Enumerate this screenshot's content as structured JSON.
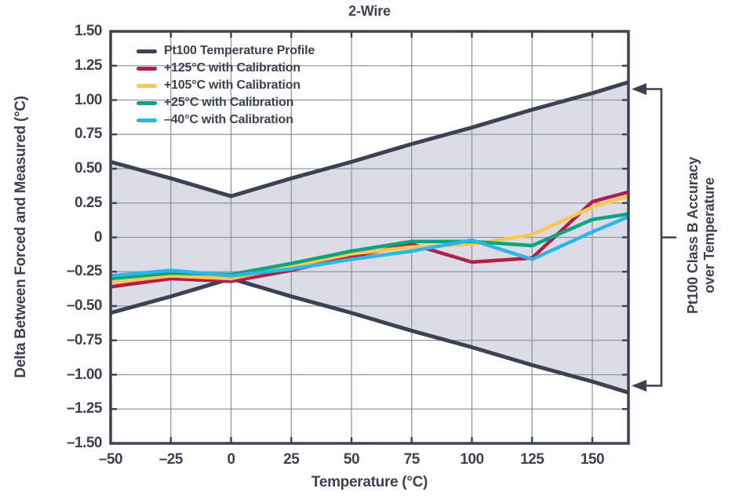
{
  "title": "2-Wire",
  "colors": {
    "ink": "#3a4253",
    "grid": "#9096a6",
    "band_fill": "#dbdce5",
    "background": "#ffffff",
    "profile": "#3a4253",
    "cal_125": "#b21e45",
    "cal_105": "#fdc74f",
    "cal_25": "#0ba57d",
    "cal_n40": "#2bb6e8"
  },
  "legend": {
    "items": [
      {
        "label": "Pt100 Temperature Profile",
        "color": "#3a4253"
      },
      {
        "label": "+125°C with Calibration",
        "color": "#b21e45"
      },
      {
        "label": "+105°C with Calibration",
        "color": "#fdc74f"
      },
      {
        "label": "+25°C with Calibration",
        "color": "#0ba57d"
      },
      {
        "label": "–40°C with Calibration",
        "color": "#2bb6e8"
      }
    ]
  },
  "annotation": {
    "line1": "Pt100 Class B Accuracy",
    "line2": "over Temperature"
  },
  "axes": {
    "x": {
      "label": "Temperature (°C)",
      "tick_labels": [
        "–50",
        "–25",
        "0",
        "25",
        "50",
        "75",
        "100",
        "125",
        "150"
      ],
      "tick_values": [
        -50,
        -25,
        0,
        25,
        50,
        75,
        100,
        125,
        150
      ]
    },
    "y": {
      "label": "Delta Between Forced and Measured (°C)",
      "tick_labels": [
        "1.50",
        "1.25",
        "1.00",
        "0.75",
        "0.50",
        "0.25",
        "0",
        "–0.25",
        "–0.50",
        "–0.75",
        "–1.00",
        "–1.25",
        "–1.50"
      ],
      "tick_values": [
        1.5,
        1.25,
        1.0,
        0.75,
        0.5,
        0.25,
        0,
        -0.25,
        -0.5,
        -0.75,
        -1.0,
        -1.25,
        -1.5
      ]
    }
  },
  "chart_data": {
    "type": "line",
    "title": "2-Wire",
    "xlabel": "Temperature (°C)",
    "ylabel": "Delta Between Forced and Measured (°C)",
    "xlim": [
      -50,
      165
    ],
    "ylim": [
      -1.5,
      1.5
    ],
    "grid": true,
    "legend_position": "upper-left",
    "x": [
      -50,
      -25,
      0,
      25,
      50,
      75,
      100,
      125,
      150,
      165
    ],
    "band": {
      "name": "Pt100 Class B accuracy band",
      "upper": [
        0.55,
        0.43,
        0.3,
        0.43,
        0.55,
        0.68,
        0.8,
        0.93,
        1.05,
        1.13
      ],
      "lower": [
        -0.55,
        -0.43,
        -0.3,
        -0.43,
        -0.55,
        -0.68,
        -0.8,
        -0.93,
        -1.05,
        -1.13
      ],
      "fill": "#dbdce5"
    },
    "series": [
      {
        "name": "Pt100 Temperature Profile (upper limit)",
        "color": "#3a4253",
        "width": 5,
        "values": [
          0.55,
          0.43,
          0.3,
          0.43,
          0.55,
          0.68,
          0.8,
          0.93,
          1.05,
          1.13
        ]
      },
      {
        "name": "Pt100 Temperature Profile (lower limit)",
        "color": "#3a4253",
        "width": 5,
        "values": [
          -0.55,
          -0.43,
          -0.3,
          -0.43,
          -0.55,
          -0.68,
          -0.8,
          -0.93,
          -1.05,
          -1.13
        ]
      },
      {
        "name": "+125°C with Calibration",
        "color": "#b21e45",
        "width": 4.5,
        "values": [
          -0.36,
          -0.3,
          -0.32,
          -0.24,
          -0.14,
          -0.05,
          -0.18,
          -0.15,
          0.26,
          0.33
        ]
      },
      {
        "name": "+105°C with Calibration",
        "color": "#fdc74f",
        "width": 4.5,
        "values": [
          -0.33,
          -0.28,
          -0.3,
          -0.21,
          -0.12,
          -0.07,
          -0.05,
          0.02,
          0.22,
          0.3
        ]
      },
      {
        "name": "+25°C with Calibration",
        "color": "#0ba57d",
        "width": 4.5,
        "values": [
          -0.3,
          -0.26,
          -0.27,
          -0.19,
          -0.1,
          -0.03,
          -0.03,
          -0.06,
          0.13,
          0.17
        ]
      },
      {
        "name": "–40°C with Calibration",
        "color": "#2bb6e8",
        "width": 4.5,
        "values": [
          -0.28,
          -0.24,
          -0.28,
          -0.23,
          -0.16,
          -0.1,
          -0.02,
          -0.16,
          0.04,
          0.15
        ]
      }
    ]
  }
}
